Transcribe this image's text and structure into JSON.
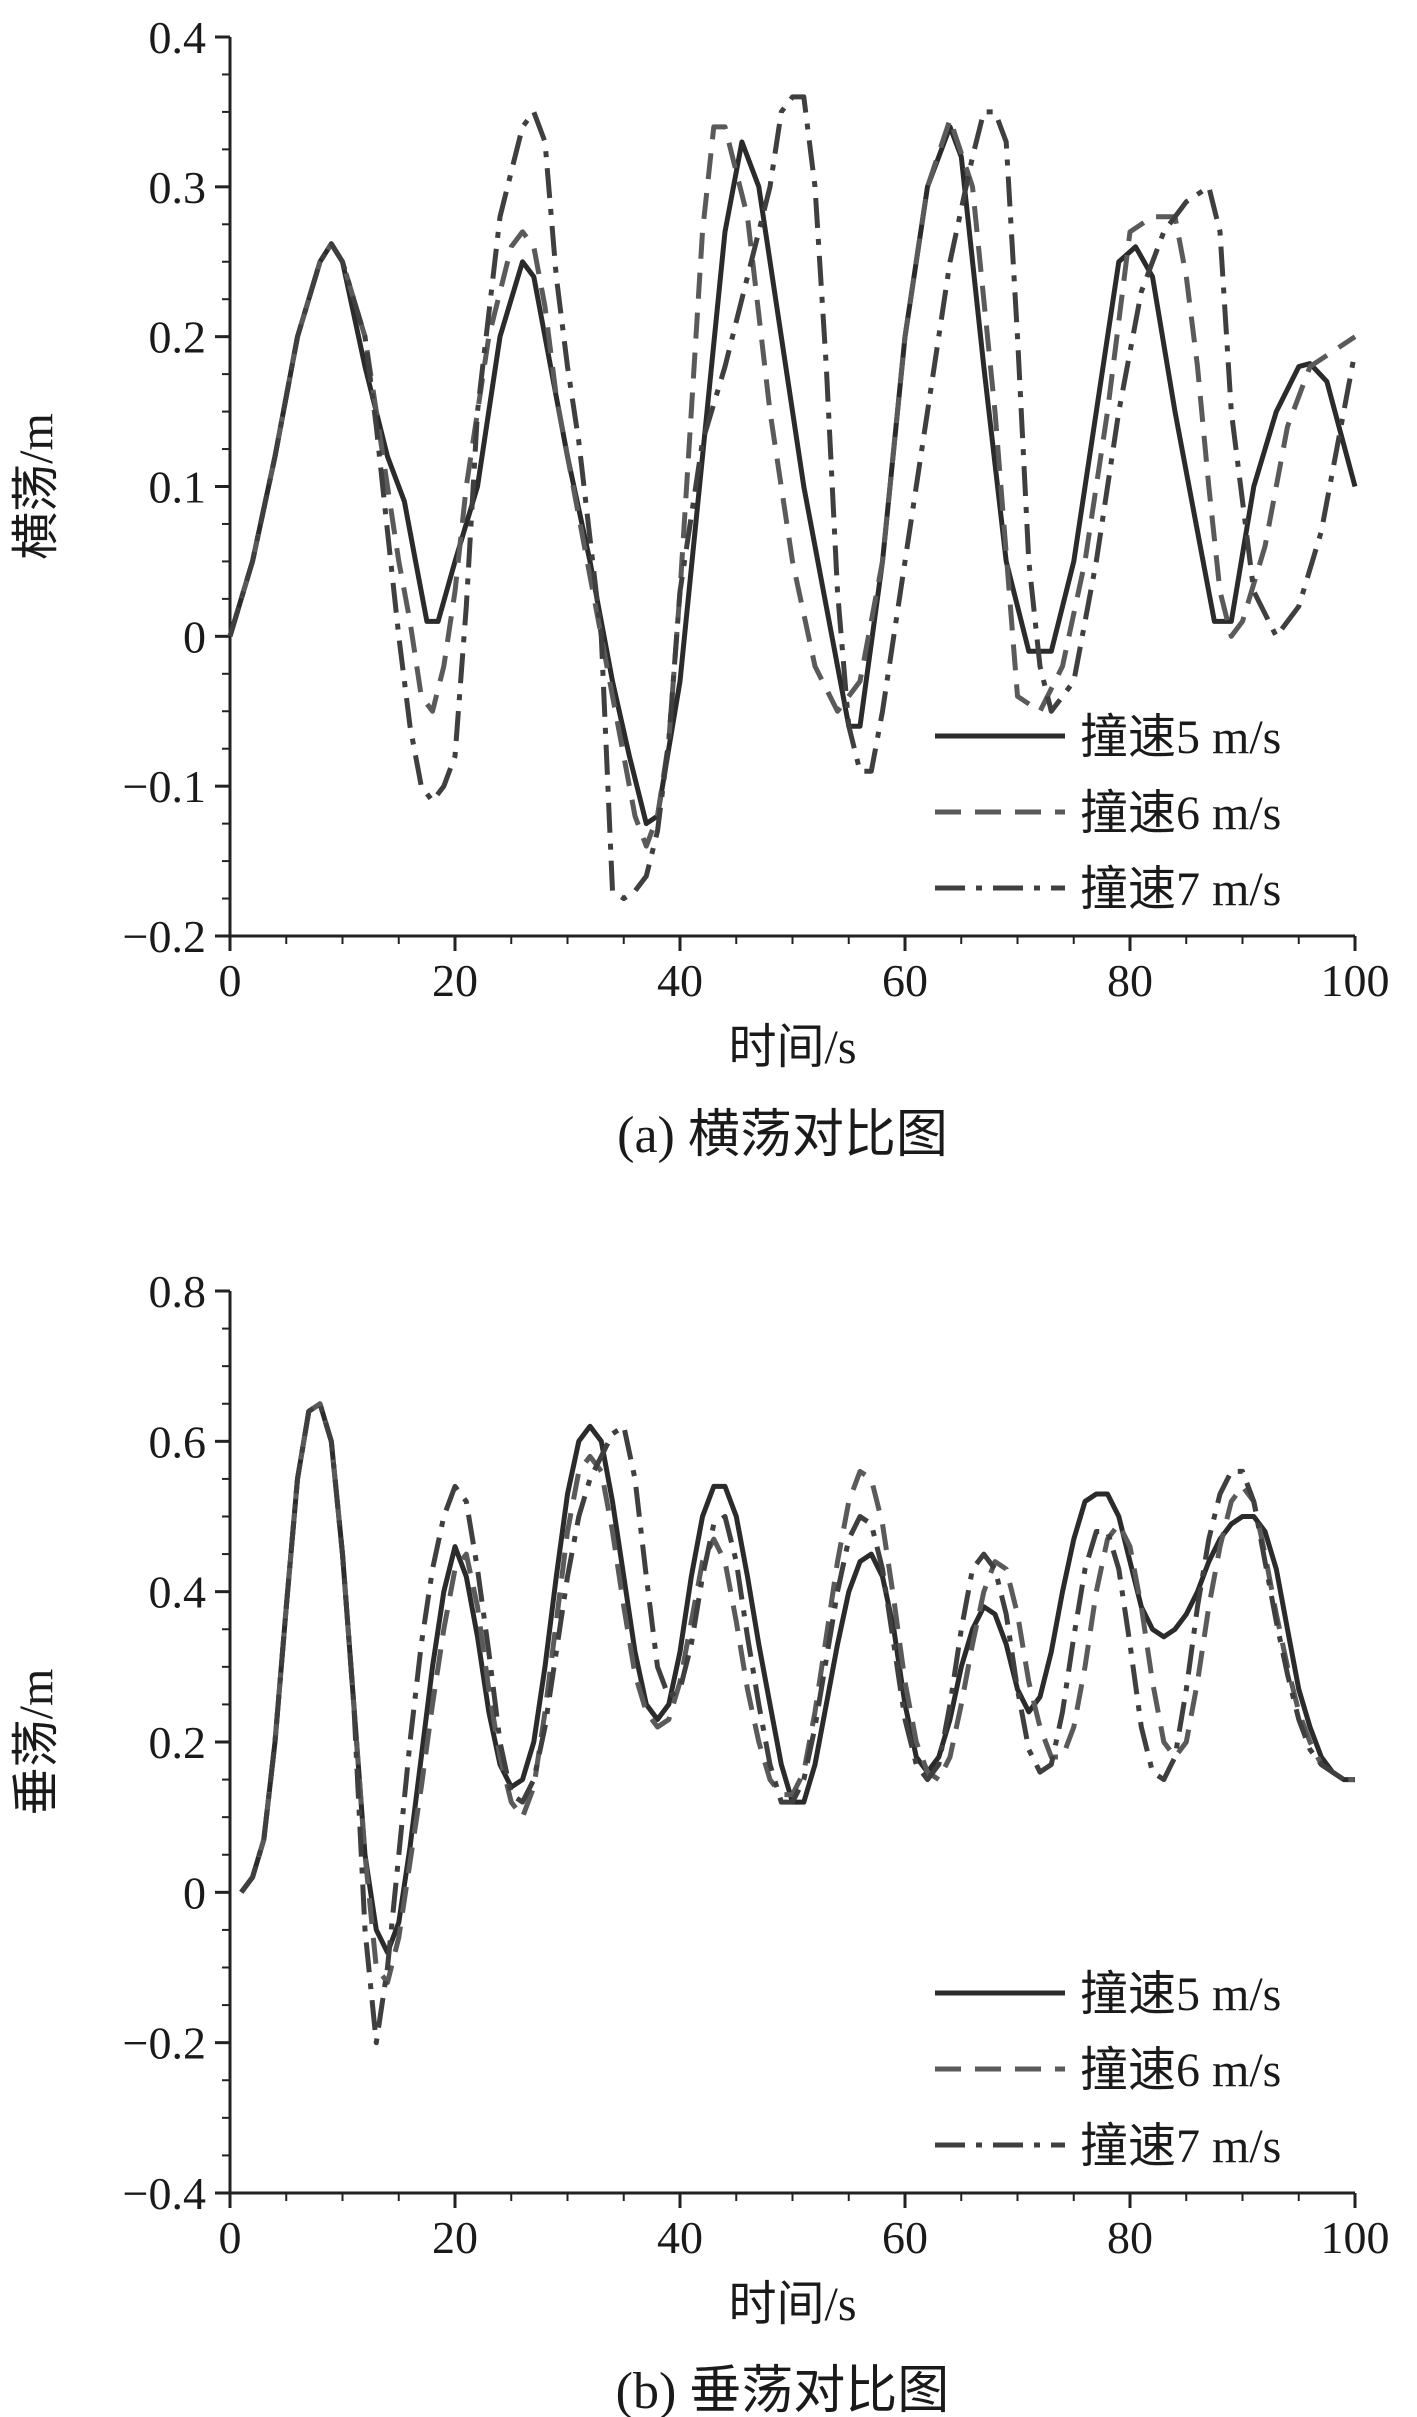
{
  "chart_data": [
    {
      "type": "line",
      "caption": "(a) 横荡对比图",
      "xlabel": "时间/s",
      "ylabel": "横荡/m",
      "xlim": [
        0,
        100
      ],
      "ylim": [
        -0.2,
        0.4
      ],
      "xticks": [
        0,
        20,
        40,
        60,
        80,
        100
      ],
      "xtick_labels": [
        "0",
        "20",
        "40",
        "60",
        "80",
        "100"
      ],
      "yticks": [
        -0.2,
        -0.1,
        0,
        0.1,
        0.2,
        0.3,
        0.4
      ],
      "ytick_labels": [
        "−0.2",
        "−0.1",
        "0",
        "0.1",
        "0.2",
        "0.3",
        "0.4"
      ],
      "grid": false,
      "legend_position": "bottom-right",
      "series": [
        {
          "name": "撞速5 m/s",
          "style": "solid",
          "color": "#2b2b2b",
          "x": [
            0,
            2,
            4,
            6,
            8,
            9,
            10,
            12,
            14,
            15.5,
            16.5,
            17.5,
            18.5,
            20,
            22,
            24,
            26,
            27,
            28,
            30,
            32,
            34,
            35.5,
            37,
            38,
            40,
            42,
            44,
            45.5,
            47,
            49,
            51,
            53,
            55,
            56,
            58,
            60,
            62,
            64,
            65,
            67,
            69,
            71,
            73,
            75,
            77,
            79,
            80.5,
            82,
            84,
            86,
            87.5,
            89,
            91,
            93,
            95,
            96,
            97.5,
            100
          ],
          "y": [
            0,
            0.05,
            0.12,
            0.2,
            0.25,
            0.262,
            0.25,
            0.18,
            0.12,
            0.09,
            0.05,
            0.01,
            0.01,
            0.05,
            0.1,
            0.2,
            0.25,
            0.24,
            0.2,
            0.12,
            0.05,
            -0.03,
            -0.08,
            -0.125,
            -0.12,
            -0.03,
            0.12,
            0.27,
            0.33,
            0.3,
            0.2,
            0.1,
            0.02,
            -0.06,
            -0.06,
            0.05,
            0.2,
            0.3,
            0.34,
            0.32,
            0.18,
            0.05,
            -0.01,
            -0.01,
            0.05,
            0.15,
            0.25,
            0.26,
            0.24,
            0.15,
            0.07,
            0.01,
            0.01,
            0.1,
            0.15,
            0.18,
            0.182,
            0.17,
            0.1
          ]
        },
        {
          "name": "撞速6 m/s",
          "style": "dashed",
          "color": "#5a5a5a",
          "x": [
            0,
            2,
            4,
            6,
            8,
            9,
            10,
            12,
            13,
            14,
            15,
            16,
            17,
            18,
            19,
            20,
            21,
            23,
            25,
            26,
            27,
            28,
            29,
            31,
            33,
            35,
            36,
            37,
            38,
            39,
            40,
            41,
            42,
            43,
            44,
            46,
            48,
            50,
            52,
            54,
            56,
            58,
            60,
            62,
            64,
            66,
            68,
            70,
            72,
            74,
            76,
            78,
            80,
            82,
            84,
            85,
            86,
            87,
            88,
            89,
            90,
            92,
            94,
            96,
            98,
            100
          ],
          "y": [
            0,
            0.05,
            0.12,
            0.2,
            0.25,
            0.262,
            0.25,
            0.2,
            0.15,
            0.1,
            0.05,
            0.01,
            -0.04,
            -0.05,
            -0.02,
            0.03,
            0.1,
            0.2,
            0.26,
            0.27,
            0.26,
            0.22,
            0.16,
            0.08,
            0,
            -0.08,
            -0.12,
            -0.14,
            -0.12,
            -0.07,
            0.03,
            0.15,
            0.27,
            0.34,
            0.34,
            0.28,
            0.15,
            0.05,
            -0.02,
            -0.05,
            -0.03,
            0.05,
            0.2,
            0.3,
            0.345,
            0.3,
            0.15,
            -0.04,
            -0.05,
            -0.02,
            0.05,
            0.15,
            0.27,
            0.28,
            0.28,
            0.24,
            0.18,
            0.1,
            0.03,
            0,
            0.01,
            0.06,
            0.14,
            0.18,
            0.19,
            0.2
          ]
        },
        {
          "name": "撞速7 m/s",
          "style": "dashdot",
          "color": "#3f3f3f",
          "x": [
            0,
            2,
            4,
            6,
            8,
            9,
            10,
            12,
            13,
            14,
            15,
            16,
            17,
            18,
            19,
            20,
            21,
            22,
            24,
            26,
            27,
            28,
            29,
            30,
            31,
            33,
            34,
            35,
            36,
            37,
            38,
            39,
            40,
            42,
            44,
            46,
            48,
            49,
            50,
            51,
            52,
            53,
            54,
            55,
            56,
            57,
            58,
            60,
            62,
            64,
            66,
            67,
            68,
            69,
            70,
            71,
            72,
            73,
            75,
            77,
            79,
            81,
            83,
            85,
            87,
            88,
            89,
            91,
            93,
            95,
            97,
            100
          ],
          "y": [
            0,
            0.05,
            0.12,
            0.2,
            0.25,
            0.262,
            0.25,
            0.2,
            0.14,
            0.07,
            0,
            -0.06,
            -0.1,
            -0.11,
            -0.1,
            -0.08,
            0.02,
            0.15,
            0.28,
            0.34,
            0.35,
            0.33,
            0.24,
            0.18,
            0.13,
            0,
            -0.17,
            -0.175,
            -0.17,
            -0.16,
            -0.13,
            -0.07,
            0.03,
            0.13,
            0.18,
            0.24,
            0.3,
            0.35,
            0.36,
            0.36,
            0.3,
            0.18,
            0.03,
            -0.06,
            -0.09,
            -0.09,
            -0.05,
            0.05,
            0.15,
            0.25,
            0.32,
            0.35,
            0.35,
            0.33,
            0.2,
            0.05,
            -0.02,
            -0.05,
            -0.03,
            0.05,
            0.15,
            0.23,
            0.27,
            0.29,
            0.3,
            0.27,
            0.15,
            0.03,
            0,
            0.02,
            0.07,
            0.19
          ]
        }
      ]
    },
    {
      "type": "line",
      "caption": "(b) 垂荡对比图",
      "xlabel": "时间/s",
      "ylabel": "垂荡/m",
      "xlim": [
        0,
        100
      ],
      "ylim": [
        -0.4,
        0.8
      ],
      "xticks": [
        0,
        20,
        40,
        60,
        80,
        100
      ],
      "xtick_labels": [
        "0",
        "20",
        "40",
        "60",
        "80",
        "100"
      ],
      "yticks": [
        -0.4,
        -0.2,
        0,
        0.2,
        0.4,
        0.6,
        0.8
      ],
      "ytick_labels": [
        "−0.4",
        "−0.2",
        "0",
        "0.2",
        "0.4",
        "0.6",
        "0.8"
      ],
      "grid": false,
      "legend_position": "bottom-right",
      "series": [
        {
          "name": "撞速5 m/s",
          "style": "solid",
          "color": "#2b2b2b",
          "x": [
            1,
            2,
            3,
            4,
            5,
            6,
            7,
            8,
            9,
            10,
            11,
            12,
            13,
            14,
            15,
            16,
            17,
            18,
            19,
            20,
            21,
            22,
            23,
            24,
            25,
            26,
            27,
            28,
            29,
            30,
            31,
            32,
            33,
            34,
            35,
            36,
            37,
            38,
            39,
            40,
            41,
            42,
            43,
            44,
            45,
            46,
            47,
            48,
            49,
            50,
            51,
            52,
            53,
            54,
            55,
            56,
            57,
            58,
            59,
            60,
            61,
            62,
            63,
            64,
            65,
            66,
            67,
            68,
            69,
            70,
            71,
            72,
            73,
            74,
            75,
            76,
            77,
            78,
            79,
            80,
            81,
            82,
            83,
            84,
            85,
            86,
            87,
            88,
            89,
            90,
            91,
            92,
            93,
            94,
            95,
            96,
            97,
            98,
            99,
            100
          ],
          "y": [
            0,
            0.02,
            0.07,
            0.2,
            0.38,
            0.55,
            0.64,
            0.65,
            0.6,
            0.45,
            0.25,
            0.05,
            -0.05,
            -0.08,
            -0.04,
            0.06,
            0.18,
            0.3,
            0.4,
            0.46,
            0.42,
            0.34,
            0.24,
            0.17,
            0.14,
            0.15,
            0.2,
            0.3,
            0.42,
            0.53,
            0.6,
            0.62,
            0.6,
            0.52,
            0.42,
            0.32,
            0.25,
            0.23,
            0.25,
            0.32,
            0.42,
            0.5,
            0.54,
            0.54,
            0.5,
            0.42,
            0.33,
            0.25,
            0.17,
            0.12,
            0.12,
            0.17,
            0.25,
            0.33,
            0.4,
            0.44,
            0.45,
            0.42,
            0.35,
            0.25,
            0.18,
            0.16,
            0.18,
            0.23,
            0.3,
            0.35,
            0.38,
            0.37,
            0.33,
            0.27,
            0.24,
            0.26,
            0.32,
            0.4,
            0.47,
            0.52,
            0.53,
            0.53,
            0.5,
            0.44,
            0.38,
            0.35,
            0.34,
            0.35,
            0.37,
            0.4,
            0.44,
            0.47,
            0.49,
            0.5,
            0.5,
            0.48,
            0.43,
            0.35,
            0.27,
            0.22,
            0.18,
            0.16,
            0.15,
            0.15
          ]
        },
        {
          "name": "撞速6 m/s",
          "style": "dashed",
          "color": "#5a5a5a",
          "x": [
            1,
            2,
            3,
            4,
            5,
            6,
            7,
            8,
            9,
            10,
            11,
            12,
            13,
            14,
            15,
            16,
            17,
            18,
            19,
            20,
            21,
            22,
            23,
            24,
            25,
            26,
            27,
            28,
            29,
            30,
            31,
            32,
            33,
            34,
            35,
            36,
            37,
            38,
            39,
            40,
            41,
            42,
            43,
            44,
            45,
            46,
            47,
            48,
            49,
            50,
            51,
            52,
            53,
            54,
            55,
            56,
            57,
            58,
            59,
            60,
            61,
            62,
            63,
            64,
            65,
            66,
            67,
            68,
            69,
            70,
            71,
            72,
            73,
            74,
            75,
            76,
            77,
            78,
            79,
            80,
            81,
            82,
            83,
            84,
            85,
            86,
            87,
            88,
            89,
            90,
            91,
            92,
            93,
            94,
            95,
            96,
            97,
            98,
            99,
            100
          ],
          "y": [
            0,
            0.02,
            0.07,
            0.2,
            0.38,
            0.55,
            0.64,
            0.65,
            0.6,
            0.45,
            0.25,
            0.05,
            -0.1,
            -0.12,
            -0.06,
            0.04,
            0.14,
            0.25,
            0.35,
            0.43,
            0.45,
            0.38,
            0.27,
            0.18,
            0.12,
            0.1,
            0.14,
            0.24,
            0.36,
            0.48,
            0.56,
            0.58,
            0.56,
            0.48,
            0.38,
            0.29,
            0.24,
            0.22,
            0.23,
            0.28,
            0.36,
            0.44,
            0.47,
            0.44,
            0.36,
            0.27,
            0.2,
            0.15,
            0.13,
            0.13,
            0.16,
            0.24,
            0.34,
            0.44,
            0.52,
            0.56,
            0.55,
            0.49,
            0.39,
            0.28,
            0.2,
            0.16,
            0.15,
            0.18,
            0.25,
            0.33,
            0.4,
            0.44,
            0.43,
            0.37,
            0.28,
            0.22,
            0.18,
            0.18,
            0.22,
            0.3,
            0.4,
            0.47,
            0.49,
            0.46,
            0.38,
            0.28,
            0.2,
            0.18,
            0.2,
            0.28,
            0.38,
            0.46,
            0.52,
            0.54,
            0.52,
            0.45,
            0.37,
            0.3,
            0.24,
            0.2,
            0.17,
            0.16,
            0.15,
            0.15
          ]
        },
        {
          "name": "撞速7 m/s",
          "style": "dashdot",
          "color": "#3f3f3f",
          "x": [
            1,
            2,
            3,
            4,
            5,
            6,
            7,
            8,
            9,
            10,
            11,
            12,
            13,
            14,
            15,
            16,
            17,
            18,
            19,
            20,
            21,
            22,
            23,
            24,
            25,
            26,
            27,
            28,
            29,
            30,
            31,
            32,
            33,
            34,
            35,
            36,
            37,
            38,
            39,
            40,
            41,
            42,
            43,
            44,
            45,
            46,
            47,
            48,
            49,
            50,
            51,
            52,
            53,
            54,
            55,
            56,
            57,
            58,
            59,
            60,
            61,
            62,
            63,
            64,
            65,
            66,
            67,
            68,
            69,
            70,
            71,
            72,
            73,
            74,
            75,
            76,
            77,
            78,
            79,
            80,
            81,
            82,
            83,
            84,
            85,
            86,
            87,
            88,
            89,
            90,
            91,
            92,
            93,
            94,
            95,
            96,
            97,
            98,
            99,
            100
          ],
          "y": [
            0,
            0.02,
            0.07,
            0.2,
            0.38,
            0.55,
            0.64,
            0.65,
            0.6,
            0.45,
            0.25,
            -0.05,
            -0.2,
            -0.1,
            0.05,
            0.2,
            0.33,
            0.43,
            0.5,
            0.54,
            0.52,
            0.43,
            0.32,
            0.2,
            0.13,
            0.12,
            0.15,
            0.22,
            0.32,
            0.42,
            0.5,
            0.55,
            0.58,
            0.61,
            0.62,
            0.55,
            0.42,
            0.3,
            0.26,
            0.27,
            0.33,
            0.42,
            0.49,
            0.5,
            0.44,
            0.34,
            0.25,
            0.17,
            0.12,
            0.12,
            0.15,
            0.22,
            0.31,
            0.4,
            0.47,
            0.5,
            0.49,
            0.43,
            0.33,
            0.23,
            0.17,
            0.15,
            0.17,
            0.25,
            0.35,
            0.43,
            0.45,
            0.43,
            0.37,
            0.27,
            0.19,
            0.16,
            0.17,
            0.24,
            0.34,
            0.43,
            0.48,
            0.48,
            0.43,
            0.33,
            0.22,
            0.16,
            0.15,
            0.18,
            0.27,
            0.38,
            0.47,
            0.53,
            0.56,
            0.56,
            0.52,
            0.44,
            0.36,
            0.29,
            0.23,
            0.19,
            0.17,
            0.16,
            0.15,
            0.15
          ]
        }
      ]
    }
  ]
}
